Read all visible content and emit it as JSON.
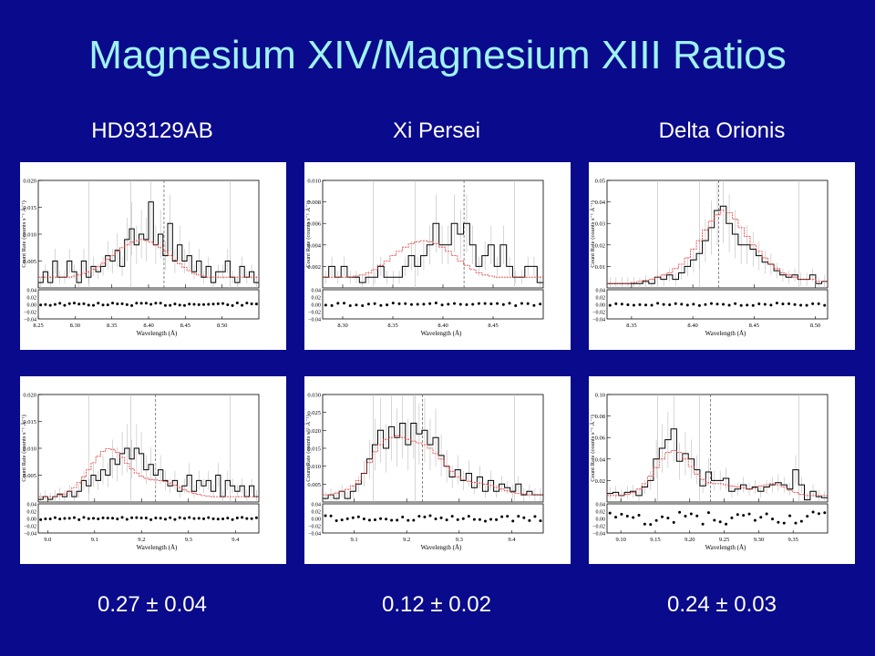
{
  "title": "Magnesium XIV/Magnesium XIII Ratios",
  "columns": [
    {
      "label": "HD93129AB",
      "ratio": "0.27 ± 0.04"
    },
    {
      "label": "Xi Persei",
      "ratio": "0.12 ± 0.02"
    },
    {
      "label": "Delta Orionis",
      "ratio": "0.24 ± 0.03"
    }
  ],
  "colors": {
    "background": "#0a0a8c",
    "title": "#9ff2f2",
    "text": "#ffffff",
    "model": "#e03030",
    "data": "#000000"
  },
  "chart_data": [
    {
      "type": "line",
      "ylabel": "Count Rate (counts s⁻¹ Å⁻¹)",
      "xlabel": "Wavelength (Å)",
      "xlim": [
        8.25,
        8.55
      ],
      "ylim": [
        0,
        0.02
      ],
      "xticks": [
        "8.25",
        "8.30",
        "8.35",
        "8.40",
        "8.45",
        "8.50"
      ],
      "yticks": [
        "0.005",
        "0.010",
        "0.015",
        "0.020"
      ],
      "dashed_x": 8.421,
      "residual_ticks": [
        "0.04",
        "0.02",
        "0.00",
        "−0.02",
        "−0.04"
      ],
      "series": [
        {
          "values": [
            0.001,
            0.003,
            0.001,
            0.005,
            0.002,
            0.002,
            0.005,
            0.003,
            0.001,
            0.005,
            0.002,
            0.004,
            0.003,
            0.004,
            0.006,
            0.005,
            0.007,
            0.004,
            0.009,
            0.011,
            0.008,
            0.01,
            0.009,
            0.016,
            0.008,
            0.01,
            0.006,
            0.012,
            0.005,
            0.008,
            0.005,
            0.006,
            0.003,
            0.005,
            0.002,
            0.004,
            0.001,
            0.003,
            0.003,
            0.005,
            0.002,
            0.001,
            0.004,
            0.002,
            0.003,
            0.001
          ]
        },
        {
          "values": [
            0.002,
            0.002,
            0.002,
            0.002,
            0.002,
            0.002,
            0.002,
            0.0022,
            0.0024,
            0.0027,
            0.003,
            0.0035,
            0.004,
            0.0046,
            0.0053,
            0.006,
            0.0068,
            0.0075,
            0.008,
            0.0085,
            0.0088,
            0.009,
            0.0088,
            0.0085,
            0.008,
            0.0075,
            0.0068,
            0.006,
            0.0052,
            0.0045,
            0.0038,
            0.0032,
            0.0027,
            0.0024,
            0.0022,
            0.002,
            0.002,
            0.002,
            0.002,
            0.002,
            0.002,
            0.002,
            0.002,
            0.002,
            0.002,
            0.002
          ]
        }
      ]
    },
    {
      "type": "line",
      "ylabel": "Count Rate (counts s⁻¹ Å⁻¹)",
      "xlabel": "Wavelength (Å)",
      "xlim": [
        8.28,
        8.5
      ],
      "ylim": [
        0,
        0.01
      ],
      "xticks": [
        "8.30",
        "8.35",
        "8.40",
        "8.45"
      ],
      "yticks": [
        "0.002",
        "0.004",
        "0.006",
        "0.008",
        "0.010"
      ],
      "dashed_x": 8.421,
      "residual_ticks": [
        "0.04",
        "0.02",
        "0.00",
        "−0.02",
        "−0.04"
      ],
      "series": [
        {
          "values": [
            0.001,
            0.002,
            0.001,
            0.002,
            0.001,
            0.001,
            0.0005,
            0.001,
            0.001,
            0.002,
            0.001,
            0.001,
            0.001,
            0.002,
            0.003,
            0.002,
            0.003,
            0.004,
            0.006,
            0.004,
            0.004,
            0.006,
            0.005,
            0.006,
            0.004,
            0.002,
            0.003,
            0.004,
            0.002,
            0.004,
            0.002,
            0.001,
            0.001,
            0.002,
            0.002,
            0.0005
          ]
        },
        {
          "values": [
            0.001,
            0.001,
            0.001,
            0.001,
            0.001,
            0.0011,
            0.0012,
            0.0014,
            0.0017,
            0.0021,
            0.0025,
            0.003,
            0.0034,
            0.0038,
            0.0041,
            0.0043,
            0.0044,
            0.0043,
            0.0041,
            0.0038,
            0.0034,
            0.003,
            0.0025,
            0.0021,
            0.0017,
            0.0014,
            0.0012,
            0.0011,
            0.001,
            0.001,
            0.001,
            0.001,
            0.001,
            0.001,
            0.001,
            0.001
          ]
        }
      ]
    },
    {
      "type": "line",
      "ylabel": "Count Rate (counts s⁻¹ Å⁻¹)",
      "xlabel": "Wavelength (Å)",
      "xlim": [
        8.33,
        8.51
      ],
      "ylim": [
        0,
        0.05
      ],
      "xticks": [
        "8.35",
        "8.40",
        "8.45",
        "8.50"
      ],
      "yticks": [
        "0.01",
        "0.02",
        "0.03",
        "0.04",
        "0.05"
      ],
      "dashed_x": 8.421,
      "residual_ticks": [
        "0.04",
        "0.02",
        "0.00",
        "−0.02",
        "−0.04"
      ],
      "series": [
        {
          "values": [
            0.002,
            0.002,
            0.002,
            0.002,
            0.002,
            0.002,
            0.003,
            0.002,
            0.005,
            0.004,
            0.006,
            0.004,
            0.007,
            0.01,
            0.013,
            0.016,
            0.022,
            0.028,
            0.036,
            0.038,
            0.03,
            0.025,
            0.02,
            0.02,
            0.018,
            0.015,
            0.012,
            0.011,
            0.008,
            0.006,
            0.005,
            0.006,
            0.004,
            0.004,
            0.006,
            0.002,
            0.003
          ]
        },
        {
          "values": [
            0.002,
            0.002,
            0.002,
            0.002,
            0.0025,
            0.003,
            0.0035,
            0.004,
            0.005,
            0.006,
            0.007,
            0.009,
            0.011,
            0.014,
            0.018,
            0.022,
            0.027,
            0.031,
            0.034,
            0.036,
            0.035,
            0.032,
            0.028,
            0.024,
            0.02,
            0.017,
            0.014,
            0.011,
            0.009,
            0.007,
            0.006,
            0.005,
            0.004,
            0.004,
            0.004,
            0.003,
            0.003
          ]
        }
      ]
    },
    {
      "type": "line",
      "ylabel": "Count Rate (counts s⁻¹ Å⁻¹)",
      "xlabel": "Wavelength (Å)",
      "xlim": [
        8.98,
        9.45
      ],
      "ylim": [
        0,
        0.02
      ],
      "xticks": [
        "9.0",
        "9.1",
        "9.2",
        "9.3",
        "9.4"
      ],
      "yticks": [
        "0.005",
        "0.010",
        "0.015",
        "0.020"
      ],
      "dashed_x": 9.23,
      "residual_ticks": [
        "0.04",
        "0.02",
        "0.00",
        "−0.02",
        "−0.04"
      ],
      "series": [
        {
          "values": [
            0.0005,
            0.001,
            0.0005,
            0.001,
            0.0015,
            0.001,
            0.002,
            0.001,
            0.002,
            0.004,
            0.003,
            0.005,
            0.004,
            0.006,
            0.005,
            0.008,
            0.007,
            0.009,
            0.01,
            0.008,
            0.01,
            0.009,
            0.006,
            0.007,
            0.005,
            0.006,
            0.004,
            0.003,
            0.004,
            0.002,
            0.003,
            0.005,
            0.002,
            0.004,
            0.003,
            0.004,
            0.002,
            0.005,
            0.001,
            0.004,
            0.003,
            0.002,
            0.003,
            0.001,
            0.003,
            0.001
          ]
        },
        {
          "values": [
            0.001,
            0.001,
            0.001,
            0.001,
            0.0012,
            0.0015,
            0.002,
            0.0027,
            0.0036,
            0.0047,
            0.006,
            0.0073,
            0.0085,
            0.0094,
            0.0099,
            0.0098,
            0.0092,
            0.0083,
            0.0072,
            0.0062,
            0.0054,
            0.0048,
            0.0044,
            0.0042,
            0.0041,
            0.004,
            0.0038,
            0.0035,
            0.0031,
            0.0027,
            0.0023,
            0.0019,
            0.0016,
            0.0014,
            0.0012,
            0.0011,
            0.001,
            0.001,
            0.001,
            0.001,
            0.001,
            0.001,
            0.001,
            0.001,
            0.001,
            0.001
          ]
        }
      ]
    },
    {
      "type": "line",
      "ylabel": "Count Rate (counts s⁻¹ Å⁻¹)",
      "xlabel": "Wavelength (Å)",
      "xlim": [
        9.04,
        9.46
      ],
      "ylim": [
        0,
        0.03
      ],
      "xticks": [
        "9.1",
        "9.2",
        "9.3",
        "9.4"
      ],
      "yticks": [
        "0.005",
        "0.010",
        "0.015",
        "0.020",
        "0.025",
        "0.030"
      ],
      "dashed_x": 9.23,
      "residual_ticks": [
        "0.04",
        "0.02",
        "0.00",
        "−0.02",
        "−0.04"
      ],
      "series": [
        {
          "values": [
            0.001,
            0.002,
            0.001,
            0.003,
            0.001,
            0.003,
            0.005,
            0.008,
            0.012,
            0.016,
            0.02,
            0.015,
            0.021,
            0.018,
            0.022,
            0.016,
            0.022,
            0.019,
            0.02,
            0.016,
            0.018,
            0.013,
            0.01,
            0.007,
            0.009,
            0.006,
            0.008,
            0.004,
            0.007,
            0.003,
            0.006,
            0.003,
            0.005,
            0.004,
            0.003,
            0.005,
            0.002,
            0.003,
            0.002,
            0.002
          ]
        },
        {
          "values": [
            0.002,
            0.002,
            0.0025,
            0.003,
            0.0035,
            0.0045,
            0.006,
            0.008,
            0.011,
            0.014,
            0.016,
            0.0175,
            0.018,
            0.0185,
            0.018,
            0.0175,
            0.017,
            0.0165,
            0.016,
            0.015,
            0.0135,
            0.012,
            0.01,
            0.0085,
            0.007,
            0.0062,
            0.0058,
            0.0055,
            0.0053,
            0.005,
            0.0046,
            0.0041,
            0.0036,
            0.0031,
            0.0027,
            0.0024,
            0.0022,
            0.002,
            0.002,
            0.002
          ]
        }
      ]
    },
    {
      "type": "line",
      "ylabel": "Count Rate (counts s⁻¹ Å⁻¹)",
      "xlabel": "Wavelength (Å)",
      "xlim": [
        9.08,
        9.4
      ],
      "ylim": [
        0,
        0.1
      ],
      "xticks": [
        "9.10",
        "9.15",
        "9.20",
        "9.25",
        "9.30",
        "9.35"
      ],
      "yticks": [
        "0.02",
        "0.04",
        "0.06",
        "0.08",
        "0.10"
      ],
      "dashed_x": 9.23,
      "residual_ticks": [
        "0.04",
        "0.02",
        "0.00",
        "−0.02",
        "−0.04"
      ],
      "series": [
        {
          "values": [
            0.008,
            0.009,
            0.006,
            0.009,
            0.01,
            0.006,
            0.014,
            0.02,
            0.04,
            0.05,
            0.058,
            0.068,
            0.038,
            0.045,
            0.04,
            0.03,
            0.015,
            0.028,
            0.02,
            0.02,
            0.022,
            0.01,
            0.012,
            0.016,
            0.012,
            0.014,
            0.01,
            0.014,
            0.016,
            0.018,
            0.016,
            0.012,
            0.03,
            0.016,
            0.002,
            0.01,
            0.005,
            0.004
          ]
        },
        {
          "values": [
            0.006,
            0.006,
            0.006,
            0.007,
            0.009,
            0.012,
            0.017,
            0.024,
            0.032,
            0.04,
            0.046,
            0.048,
            0.046,
            0.04,
            0.033,
            0.026,
            0.021,
            0.018,
            0.017,
            0.017,
            0.016,
            0.015,
            0.014,
            0.013,
            0.012,
            0.013,
            0.015,
            0.016,
            0.017,
            0.016,
            0.014,
            0.011,
            0.009,
            0.007,
            0.006,
            0.006,
            0.006,
            0.006
          ]
        }
      ]
    }
  ]
}
